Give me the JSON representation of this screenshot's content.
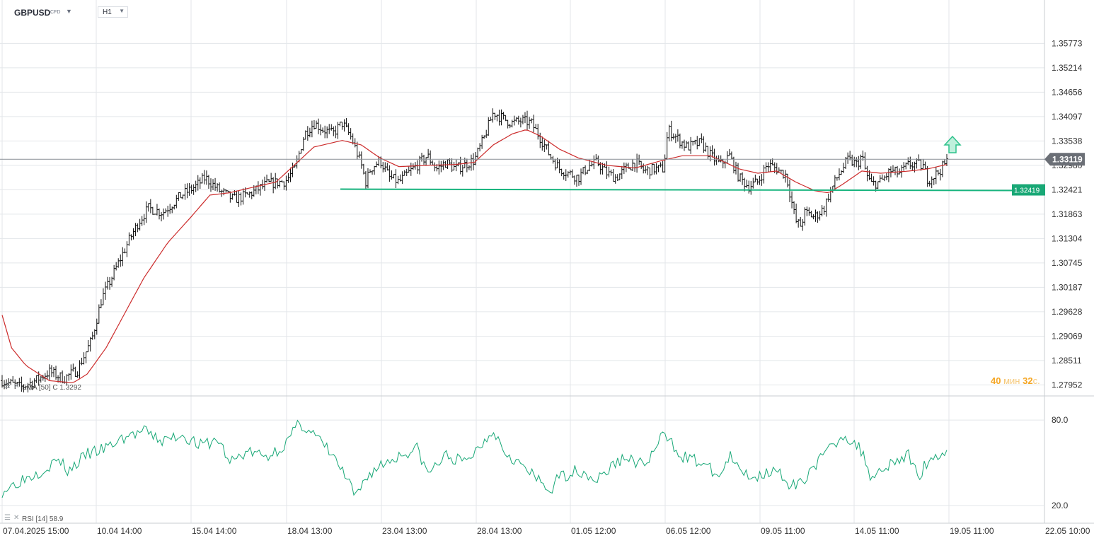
{
  "header": {
    "symbol": "GBPUSD",
    "symbol_type": "CFD",
    "timeframe": "H1",
    "caret_glyph": "▼"
  },
  "countdown": {
    "minutes": "40",
    "minutes_unit": "мин",
    "seconds": "32",
    "seconds_unit": "с."
  },
  "indicators": {
    "ema_legend": "EMA [50] C 1.3292",
    "rsi_legend": "RSI [14] 58.9"
  },
  "colors": {
    "candle": "#111111",
    "ema": "#cc2b2b",
    "rsi": "#18a877",
    "support_line": "#19b57f",
    "support_label_bg": "#19a876",
    "current_price_bg": "#6b6f76",
    "up_arrow": "#2fc28c",
    "grid": "#e3e6ea"
  },
  "chart_data": [
    {
      "type": "candlestick",
      "symbol": "GBPUSD",
      "timeframe": "H1",
      "ylim": [
        1.277,
        1.362
      ],
      "y_ticks": [
        "1.35773",
        "1.35214",
        "1.34656",
        "1.34097",
        "1.33538",
        "1.32980",
        "1.32421",
        "1.31863",
        "1.31304",
        "1.30745",
        "1.30187",
        "1.29628",
        "1.29069",
        "1.28511",
        "1.27952"
      ],
      "x_labels": [
        "07.04.2025  15:00",
        "10.04  14:00",
        "15.04  14:00",
        "18.04  13:00",
        "23.04  13:00",
        "28.04  13:00",
        "01.05  12:00",
        "06.05  12:00",
        "09.05  11:00",
        "14.05  11:00",
        "19.05  11:00",
        "22.05  10:00"
      ],
      "current_price": "1.33119",
      "support_price": "1.32419",
      "trend_marker": "up-arrow",
      "close_path": [
        [
          0,
          1.2805
        ],
        [
          0.02,
          1.279
        ],
        [
          0.035,
          1.2805
        ],
        [
          0.05,
          1.2825
        ],
        [
          0.065,
          1.281
        ],
        [
          0.08,
          1.283
        ],
        [
          0.095,
          1.29
        ],
        [
          0.105,
          1.299
        ],
        [
          0.12,
          1.306
        ],
        [
          0.135,
          1.313
        ],
        [
          0.145,
          1.317
        ],
        [
          0.155,
          1.32
        ],
        [
          0.17,
          1.319
        ],
        [
          0.19,
          1.323
        ],
        [
          0.205,
          1.325
        ],
        [
          0.215,
          1.327
        ],
        [
          0.23,
          1.324
        ],
        [
          0.245,
          1.322
        ],
        [
          0.26,
          1.323
        ],
        [
          0.28,
          1.3255
        ],
        [
          0.3,
          1.3262
        ],
        [
          0.31,
          1.329
        ],
        [
          0.32,
          1.337
        ],
        [
          0.33,
          1.3395
        ],
        [
          0.34,
          1.338
        ],
        [
          0.35,
          1.337
        ],
        [
          0.36,
          1.3395
        ],
        [
          0.37,
          1.336
        ],
        [
          0.38,
          1.33
        ],
        [
          0.385,
          1.326
        ],
        [
          0.39,
          1.329
        ],
        [
          0.4,
          1.331
        ],
        [
          0.41,
          1.327
        ],
        [
          0.42,
          1.326
        ],
        [
          0.43,
          1.328
        ],
        [
          0.44,
          1.33
        ],
        [
          0.45,
          1.332
        ],
        [
          0.46,
          1.329
        ],
        [
          0.47,
          1.3305
        ],
        [
          0.48,
          1.329
        ],
        [
          0.49,
          1.33
        ],
        [
          0.5,
          1.331
        ],
        [
          0.51,
          1.336
        ],
        [
          0.52,
          1.342
        ],
        [
          0.53,
          1.3405
        ],
        [
          0.54,
          1.3395
        ],
        [
          0.55,
          1.34
        ],
        [
          0.56,
          1.3395
        ],
        [
          0.57,
          1.336
        ],
        [
          0.58,
          1.332
        ],
        [
          0.59,
          1.329
        ],
        [
          0.6,
          1.328
        ],
        [
          0.61,
          1.327
        ],
        [
          0.62,
          1.3295
        ],
        [
          0.63,
          1.3305
        ],
        [
          0.64,
          1.328
        ],
        [
          0.65,
          1.327
        ],
        [
          0.66,
          1.329
        ],
        [
          0.67,
          1.3305
        ],
        [
          0.68,
          1.3285
        ],
        [
          0.69,
          1.329
        ],
        [
          0.7,
          1.329
        ],
        [
          0.705,
          1.338
        ],
        [
          0.715,
          1.336
        ],
        [
          0.725,
          1.334
        ],
        [
          0.74,
          1.335
        ],
        [
          0.75,
          1.332
        ],
        [
          0.76,
          1.33
        ],
        [
          0.77,
          1.332
        ],
        [
          0.78,
          1.327
        ],
        [
          0.79,
          1.325
        ],
        [
          0.8,
          1.326
        ],
        [
          0.81,
          1.33
        ],
        [
          0.82,
          1.329
        ],
        [
          0.83,
          1.3275
        ],
        [
          0.84,
          1.317
        ],
        [
          0.845,
          1.316
        ],
        [
          0.85,
          1.319
        ],
        [
          0.86,
          1.318
        ],
        [
          0.87,
          1.32
        ],
        [
          0.875,
          1.323
        ],
        [
          0.885,
          1.3275
        ],
        [
          0.895,
          1.331
        ],
        [
          0.905,
          1.33
        ],
        [
          0.91,
          1.332
        ],
        [
          0.915,
          1.3275
        ],
        [
          0.92,
          1.3255
        ],
        [
          0.93,
          1.326
        ],
        [
          0.94,
          1.3285
        ],
        [
          0.95,
          1.328
        ],
        [
          0.96,
          1.33
        ],
        [
          0.97,
          1.33
        ],
        [
          0.975,
          1.3295
        ],
        [
          0.98,
          1.3265
        ],
        [
          0.99,
          1.328
        ],
        [
          1.0,
          1.3306
        ]
      ],
      "ema_path": [
        [
          0,
          1.2955
        ],
        [
          0.01,
          1.288
        ],
        [
          0.025,
          1.284
        ],
        [
          0.05,
          1.2805
        ],
        [
          0.075,
          1.28
        ],
        [
          0.09,
          1.282
        ],
        [
          0.11,
          1.288
        ],
        [
          0.13,
          1.296
        ],
        [
          0.15,
          1.304
        ],
        [
          0.175,
          1.312
        ],
        [
          0.2,
          1.318
        ],
        [
          0.22,
          1.323
        ],
        [
          0.24,
          1.3235
        ],
        [
          0.26,
          1.3245
        ],
        [
          0.29,
          1.326
        ],
        [
          0.31,
          1.33
        ],
        [
          0.33,
          1.334
        ],
        [
          0.36,
          1.3355
        ],
        [
          0.38,
          1.3345
        ],
        [
          0.4,
          1.3315
        ],
        [
          0.42,
          1.3295
        ],
        [
          0.45,
          1.3298
        ],
        [
          0.48,
          1.33
        ],
        [
          0.5,
          1.3305
        ],
        [
          0.52,
          1.3345
        ],
        [
          0.54,
          1.337
        ],
        [
          0.555,
          1.338
        ],
        [
          0.57,
          1.3365
        ],
        [
          0.59,
          1.3335
        ],
        [
          0.61,
          1.3315
        ],
        [
          0.64,
          1.3298
        ],
        [
          0.67,
          1.3292
        ],
        [
          0.7,
          1.331
        ],
        [
          0.72,
          1.332
        ],
        [
          0.75,
          1.332
        ],
        [
          0.78,
          1.329
        ],
        [
          0.8,
          1.328
        ],
        [
          0.82,
          1.3285
        ],
        [
          0.84,
          1.326
        ],
        [
          0.86,
          1.324
        ],
        [
          0.875,
          1.3235
        ],
        [
          0.89,
          1.3255
        ],
        [
          0.91,
          1.3285
        ],
        [
          0.93,
          1.328
        ],
        [
          0.96,
          1.3285
        ],
        [
          0.98,
          1.329
        ],
        [
          1.0,
          1.33
        ]
      ]
    },
    {
      "type": "line",
      "name": "RSI [14]",
      "ylim": [
        15,
        87
      ],
      "y_ticks": [
        "80.0",
        "20.0"
      ],
      "last_value": 58.9,
      "path": [
        [
          0,
          30
        ],
        [
          0.02,
          38
        ],
        [
          0.04,
          44
        ],
        [
          0.06,
          52
        ],
        [
          0.07,
          44
        ],
        [
          0.09,
          56
        ],
        [
          0.11,
          60
        ],
        [
          0.13,
          68
        ],
        [
          0.15,
          72
        ],
        [
          0.17,
          65
        ],
        [
          0.19,
          70
        ],
        [
          0.21,
          62
        ],
        [
          0.23,
          66
        ],
        [
          0.24,
          50
        ],
        [
          0.26,
          58
        ],
        [
          0.28,
          54
        ],
        [
          0.3,
          63
        ],
        [
          0.315,
          78
        ],
        [
          0.33,
          70
        ],
        [
          0.35,
          55
        ],
        [
          0.36,
          44
        ],
        [
          0.375,
          25
        ],
        [
          0.385,
          40
        ],
        [
          0.4,
          48
        ],
        [
          0.42,
          55
        ],
        [
          0.44,
          60
        ],
        [
          0.45,
          42
        ],
        [
          0.47,
          55
        ],
        [
          0.49,
          50
        ],
        [
          0.51,
          65
        ],
        [
          0.52,
          74
        ],
        [
          0.53,
          60
        ],
        [
          0.55,
          48
        ],
        [
          0.56,
          42
        ],
        [
          0.58,
          30
        ],
        [
          0.59,
          40
        ],
        [
          0.61,
          45
        ],
        [
          0.63,
          38
        ],
        [
          0.65,
          50
        ],
        [
          0.66,
          54
        ],
        [
          0.68,
          48
        ],
        [
          0.69,
          58
        ],
        [
          0.7,
          70
        ],
        [
          0.72,
          55
        ],
        [
          0.74,
          50
        ],
        [
          0.76,
          40
        ],
        [
          0.77,
          55
        ],
        [
          0.78,
          44
        ],
        [
          0.8,
          40
        ],
        [
          0.82,
          48
        ],
        [
          0.83,
          32
        ],
        [
          0.845,
          35
        ],
        [
          0.855,
          45
        ],
        [
          0.87,
          55
        ],
        [
          0.89,
          70
        ],
        [
          0.9,
          65
        ],
        [
          0.91,
          58
        ],
        [
          0.92,
          40
        ],
        [
          0.94,
          50
        ],
        [
          0.96,
          55
        ],
        [
          0.97,
          40
        ],
        [
          0.98,
          52
        ],
        [
          0.99,
          55
        ],
        [
          1.0,
          58.9
        ]
      ]
    }
  ]
}
